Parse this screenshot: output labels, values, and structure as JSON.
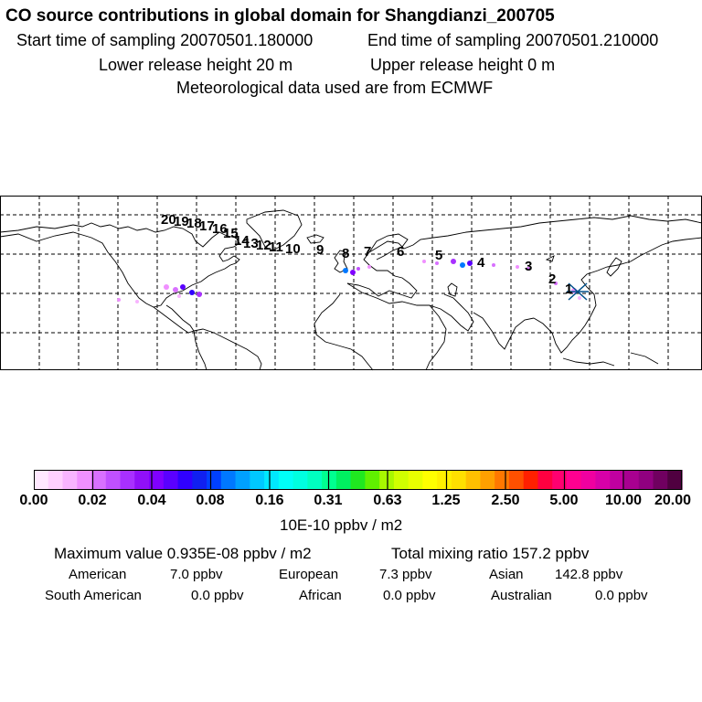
{
  "header": {
    "title": "CO  source contributions in global domain for Shangdianzi_200705",
    "start_time": "Start time of sampling 20070501.180000",
    "end_time": "End time of sampling 20070501.210000",
    "lower_height": "Lower release height   20 m",
    "upper_height": "Upper release height    0 m",
    "met_data": "Meteorological data used are from ECMWF"
  },
  "map": {
    "trajectory_labels": [
      "1",
      "2",
      "3",
      "4",
      "5",
      "6",
      "7",
      "8",
      "9",
      "10",
      "11",
      "12",
      "13",
      "14",
      "15",
      "16",
      "17",
      "18",
      "19",
      "20"
    ],
    "receptor_marker": "x-marker",
    "colors": {
      "coast": "#000000",
      "grid": "#000000"
    }
  },
  "colorbar": {
    "ticks": [
      "0.00",
      "0.02",
      "0.04",
      "0.08",
      "0.16",
      "0.31",
      "0.63",
      "1.25",
      "2.50",
      "5.00",
      "10.00",
      "20.00"
    ],
    "units": "10E-10 ppbv / m2",
    "colors": [
      "#ffe8ff",
      "#ffd0ff",
      "#f8b4ff",
      "#f090ff",
      "#d870ff",
      "#c050ff",
      "#a830ff",
      "#9010f8",
      "#8000ff",
      "#5a00ff",
      "#3000ff",
      "#1020f0",
      "#0040ff",
      "#0078ff",
      "#00a0ff",
      "#00c8ff",
      "#00e8ff",
      "#00fff8",
      "#00ffe0",
      "#00ffc0",
      "#00ff90",
      "#00f060",
      "#20e820",
      "#60f000",
      "#a8f800",
      "#d0ff00",
      "#e8ff00",
      "#ffff00",
      "#fff000",
      "#ffe000",
      "#ffc000",
      "#ffa000",
      "#ff7800",
      "#ff5000",
      "#ff2000",
      "#ff0040",
      "#ff0070",
      "#ff0090",
      "#f000a0",
      "#d800a8",
      "#c000a0",
      "#a80090",
      "#900080",
      "#700060",
      "#500040"
    ]
  },
  "stats": {
    "max_value": "Maximum value  0.935E-08 ppbv / m2",
    "total_ratio": "Total mixing ratio      157.2 ppbv",
    "regions": [
      {
        "name": "American",
        "value": "7.0 ppbv"
      },
      {
        "name": "European",
        "value": "7.3 ppbv"
      },
      {
        "name": "Asian",
        "value": "142.8 ppbv"
      },
      {
        "name": "South American",
        "value": "0.0 ppbv"
      },
      {
        "name": "African",
        "value": "0.0 ppbv"
      },
      {
        "name": "Australian",
        "value": "0.0 ppbv"
      }
    ]
  }
}
